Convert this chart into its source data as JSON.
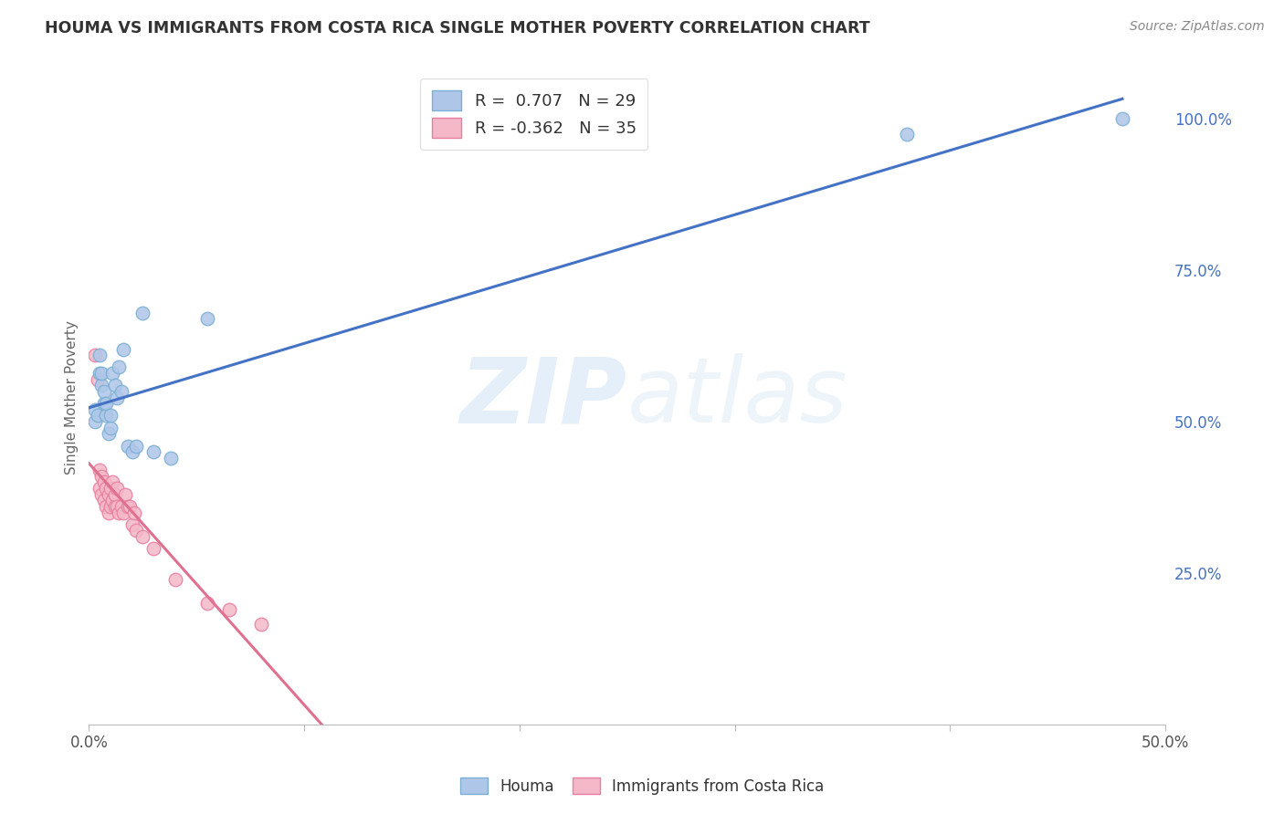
{
  "title": "HOUMA VS IMMIGRANTS FROM COSTA RICA SINGLE MOTHER POVERTY CORRELATION CHART",
  "source": "Source: ZipAtlas.com",
  "ylabel": "Single Mother Poverty",
  "xlim": [
    0.0,
    0.5
  ],
  "ylim": [
    0.0,
    1.08
  ],
  "watermark": "ZIPatlas",
  "legend_entries": [
    {
      "label_prefix": "R = ",
      "r_val": " 0.707",
      "label_mid": "   N = ",
      "n_val": "29",
      "color": "#aec6e8",
      "edge": "#7bafd4"
    },
    {
      "label_prefix": "R = ",
      "r_val": "-0.362",
      "label_mid": "   N = ",
      "n_val": "35",
      "color": "#f4b8c8",
      "edge": "#e87fa0"
    }
  ],
  "series_houma": {
    "name": "Houma",
    "marker_facecolor": "#aec6e8",
    "marker_edgecolor": "#7bafd4",
    "line_color": "#4472c4",
    "x": [
      0.003,
      0.003,
      0.004,
      0.005,
      0.005,
      0.006,
      0.006,
      0.007,
      0.007,
      0.008,
      0.008,
      0.009,
      0.01,
      0.01,
      0.011,
      0.012,
      0.013,
      0.014,
      0.015,
      0.016,
      0.018,
      0.02,
      0.022,
      0.025,
      0.03,
      0.038,
      0.055,
      0.38,
      0.48
    ],
    "y": [
      0.5,
      0.52,
      0.51,
      0.58,
      0.61,
      0.56,
      0.58,
      0.53,
      0.55,
      0.51,
      0.53,
      0.48,
      0.49,
      0.51,
      0.58,
      0.56,
      0.54,
      0.59,
      0.55,
      0.62,
      0.46,
      0.45,
      0.46,
      0.68,
      0.45,
      0.44,
      0.67,
      0.975,
      1.0
    ]
  },
  "series_cr": {
    "name": "Immigrants from Costa Rica",
    "marker_facecolor": "#f4b8c8",
    "marker_edgecolor": "#e87fa0",
    "line_color": "#e07090",
    "line_solid_end": 0.16,
    "x": [
      0.003,
      0.004,
      0.005,
      0.005,
      0.006,
      0.006,
      0.007,
      0.007,
      0.008,
      0.008,
      0.009,
      0.009,
      0.01,
      0.01,
      0.011,
      0.011,
      0.012,
      0.012,
      0.013,
      0.013,
      0.014,
      0.015,
      0.016,
      0.017,
      0.018,
      0.019,
      0.02,
      0.021,
      0.022,
      0.025,
      0.03,
      0.04,
      0.055,
      0.065,
      0.08
    ],
    "y": [
      0.61,
      0.57,
      0.39,
      0.42,
      0.38,
      0.41,
      0.37,
      0.4,
      0.36,
      0.39,
      0.35,
      0.38,
      0.36,
      0.39,
      0.37,
      0.4,
      0.36,
      0.38,
      0.36,
      0.39,
      0.35,
      0.36,
      0.35,
      0.38,
      0.36,
      0.36,
      0.33,
      0.35,
      0.32,
      0.31,
      0.29,
      0.24,
      0.2,
      0.19,
      0.165
    ]
  },
  "background_color": "#ffffff",
  "grid_color": "#cccccc",
  "title_color": "#333333",
  "right_tick_color": "#4472c4"
}
